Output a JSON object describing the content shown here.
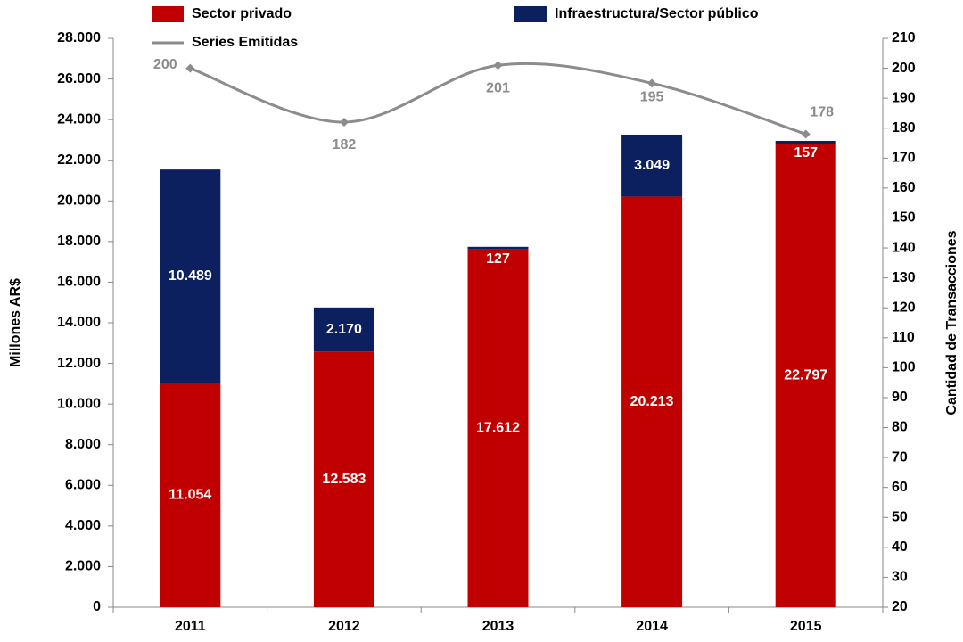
{
  "chart_data": {
    "type": "bar",
    "categories": [
      "2011",
      "2012",
      "2013",
      "2014",
      "2015"
    ],
    "stacked": true,
    "y_label": "Millones AR$",
    "y2_label": "Cantidad de Transacciones",
    "series": [
      {
        "name": "Sector privado",
        "color": "#c00000",
        "values": [
          11054,
          12583,
          17612,
          20213,
          22797
        ],
        "value_labels": [
          "11.054",
          "12.583",
          "17.612",
          "20.213",
          "22.797"
        ]
      },
      {
        "name": "Infraestructura/Sector público",
        "color": "#0c1f5e",
        "values": [
          10489,
          2170,
          127,
          3049,
          157
        ],
        "value_labels": [
          "10.489",
          "2.170",
          "127",
          "3.049",
          "157"
        ]
      },
      {
        "name": "Series Emitidas",
        "type": "line",
        "axis": "y2",
        "color": "#8c8c8c",
        "values": [
          200,
          182,
          201,
          195,
          178
        ]
      }
    ],
    "ylim": [
      0,
      28000
    ],
    "yticks": [
      0,
      {
        "value": 2000,
        "label": "2.000"
      },
      {
        "value": 4000,
        "label": "4.000"
      },
      {
        "value": 6000,
        "label": "6.000"
      },
      {
        "value": 8000,
        "label": "8.000"
      },
      {
        "value": 10000,
        "label": "10.000"
      },
      {
        "value": 12000,
        "label": "12.000"
      },
      {
        "value": 14000,
        "label": "14.000"
      },
      {
        "value": 16000,
        "label": "16.000"
      },
      {
        "value": 18000,
        "label": "18.000"
      },
      {
        "value": 20000,
        "label": "20.000"
      },
      {
        "value": 22000,
        "label": "22.000"
      },
      {
        "value": 24000,
        "label": "24.000"
      },
      {
        "value": 26000,
        "label": "26.000"
      },
      {
        "value": 28000,
        "label": "28.000"
      }
    ],
    "y2lim": [
      20,
      210
    ],
    "y2ticks": [
      20,
      30,
      40,
      50,
      60,
      70,
      80,
      90,
      100,
      110,
      120,
      130,
      140,
      150,
      160,
      170,
      180,
      190,
      200,
      210
    ],
    "grid": false
  }
}
